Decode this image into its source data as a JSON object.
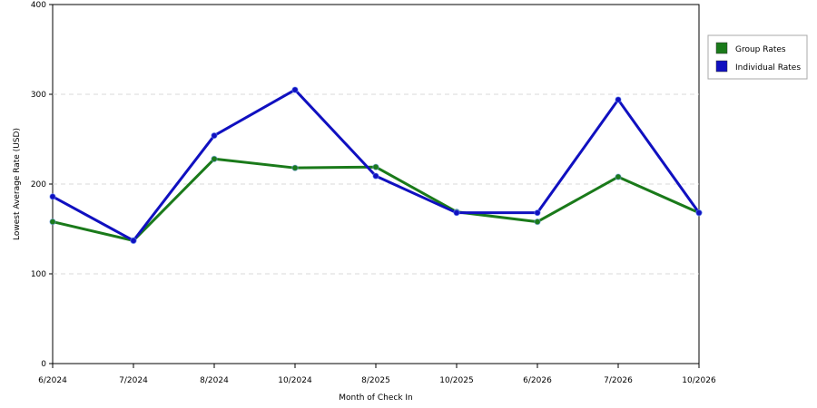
{
  "chart_data": {
    "type": "line",
    "categories": [
      "6/2024",
      "7/2024",
      "8/2024",
      "10/2024",
      "8/2025",
      "10/2025",
      "6/2026",
      "7/2026",
      "10/2026"
    ],
    "series": [
      {
        "name": "Group Rates",
        "color": "#1a7a1a",
        "values": [
          158,
          137,
          228,
          218,
          219,
          169,
          158,
          208,
          168
        ]
      },
      {
        "name": "Individual Rates",
        "color": "#1010c0",
        "values": [
          186,
          137,
          254,
          305,
          209,
          168,
          168,
          294,
          168
        ]
      }
    ],
    "xlabel": "Month of Check In",
    "ylabel": "Lowest Average Rate (USD)",
    "ylim": [
      0,
      400
    ],
    "yticks": [
      0,
      100,
      200,
      300,
      400
    ],
    "grid": "horizontal-dashed",
    "legend": "top-right"
  }
}
